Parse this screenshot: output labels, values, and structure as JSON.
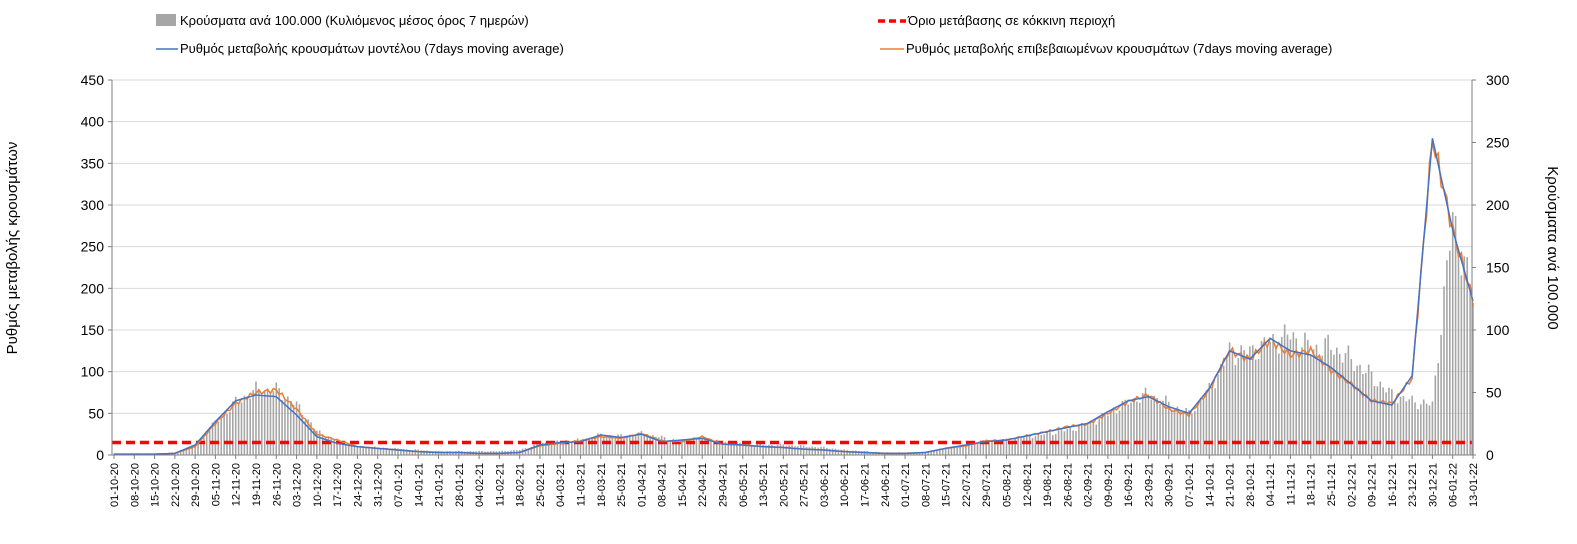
{
  "chart_data": {
    "type": "bar+line",
    "legend": {
      "bars": "Κρούσματα ανά 100.000 (Κυλιόμενος μέσος όρος 7 ημερών)",
      "threshold": "Όριο μετάβασης σε κόκκινη περιοχή",
      "model": "Ρυθμός μεταβολής κρουσμάτων μοντέλου (7days moving average)",
      "confirmed": "Ρυθμός μεταβολής επιβεβαιωμένων κρουσμάτων (7days moving average)"
    },
    "y_left_label": "Ρυθμός μεταβολής κρουσμάτων",
    "y_right_label": "Κρούσματα ανά 100.000",
    "y_left_range": [
      0,
      450
    ],
    "y_left_ticks": [
      "0",
      "50",
      "100",
      "150",
      "200",
      "250",
      "300",
      "350",
      "400",
      "450"
    ],
    "y_right_range": [
      0,
      300
    ],
    "y_right_ticks": [
      "0",
      "50",
      "100",
      "150",
      "200",
      "250",
      "300"
    ],
    "threshold_value": 15,
    "x_ticks": [
      "01-10-20",
      "08-10-20",
      "15-10-20",
      "22-10-20",
      "29-10-20",
      "05-11-20",
      "12-11-20",
      "19-11-20",
      "26-11-20",
      "03-12-20",
      "10-12-20",
      "17-12-20",
      "24-12-20",
      "31-12-20",
      "07-01-21",
      "14-01-21",
      "21-01-21",
      "28-01-21",
      "04-02-21",
      "11-02-21",
      "18-02-21",
      "25-02-21",
      "04-03-21",
      "11-03-21",
      "18-03-21",
      "25-03-21",
      "01-04-21",
      "08-04-21",
      "15-04-21",
      "22-04-21",
      "29-04-21",
      "06-05-21",
      "13-05-21",
      "20-05-21",
      "27-05-21",
      "03-06-21",
      "10-06-21",
      "17-06-21",
      "24-06-21",
      "01-07-21",
      "08-07-21",
      "15-07-21",
      "22-07-21",
      "29-07-21",
      "05-08-21",
      "12-08-21",
      "19-08-21",
      "26-08-21",
      "02-09-21",
      "09-09-21",
      "16-09-21",
      "23-09-21",
      "30-09-21",
      "07-10-21",
      "14-10-21",
      "21-10-21",
      "28-10-21",
      "04-11-21",
      "11-11-21",
      "18-11-21",
      "25-11-21",
      "02-12-21",
      "09-12-21",
      "16-12-21",
      "23-12-21",
      "30-12-21",
      "06-01-22",
      "13-01-22"
    ],
    "series_knots": {
      "weeks": [
        0,
        1,
        2,
        3,
        4,
        5,
        6,
        7,
        8,
        9,
        10,
        11,
        12,
        13,
        14,
        15,
        16,
        17,
        18,
        19,
        20,
        21,
        22,
        23,
        24,
        25,
        26,
        27,
        28,
        29,
        30,
        31,
        32,
        33,
        34,
        35,
        36,
        37,
        38,
        39,
        40,
        41,
        42,
        43,
        44,
        45,
        46,
        47,
        48,
        49,
        50,
        51,
        52,
        53,
        54,
        55,
        56,
        57,
        58,
        59,
        60,
        61,
        62,
        63,
        64,
        65,
        66,
        67
      ],
      "bars_per_100k": [
        1,
        1,
        1,
        2,
        8,
        26,
        42,
        52,
        52,
        40,
        19,
        11,
        7,
        6,
        5,
        4,
        3,
        3,
        3,
        3,
        4,
        9,
        11,
        12,
        16,
        15,
        17,
        14,
        11,
        14,
        10,
        9,
        8,
        8,
        7,
        6,
        4,
        3,
        2,
        2,
        2,
        5,
        8,
        11,
        12,
        15,
        17,
        20,
        24,
        33,
        42,
        49,
        41,
        33,
        52,
        82,
        82,
        90,
        96,
        85,
        87,
        76,
        63,
        48,
        43,
        40,
        190,
        125
      ],
      "model_rate": [
        1,
        1,
        1,
        2,
        12,
        40,
        65,
        72,
        70,
        48,
        22,
        14,
        10,
        8,
        6,
        4,
        3,
        3,
        2,
        2,
        3,
        12,
        15,
        16,
        24,
        21,
        25,
        16,
        18,
        20,
        13,
        12,
        10,
        9,
        7,
        6,
        4,
        3,
        2,
        2,
        3,
        8,
        12,
        16,
        18,
        23,
        28,
        33,
        38,
        52,
        65,
        70,
        58,
        50,
        80,
        125,
        115,
        140,
        125,
        120,
        105,
        85,
        65,
        60,
        95,
        380,
        270,
        185
      ],
      "confirmed_rate": [
        1,
        1,
        1,
        2,
        10,
        38,
        62,
        75,
        78,
        55,
        25,
        18,
        10,
        8,
        6,
        4,
        3,
        3,
        2,
        2,
        3,
        11,
        14,
        17,
        22,
        20,
        26,
        17,
        16,
        22,
        13,
        12,
        10,
        9,
        7,
        6,
        4,
        3,
        2,
        2,
        3,
        8,
        11,
        17,
        18,
        23,
        28,
        34,
        37,
        50,
        64,
        72,
        55,
        48,
        78,
        125,
        115,
        138,
        120,
        125,
        102,
        85,
        65,
        62,
        92,
        380,
        270,
        185
      ]
    }
  }
}
